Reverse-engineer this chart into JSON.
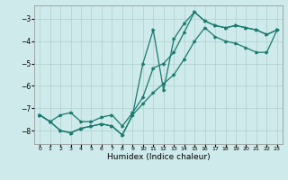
{
  "xlabel": "Humidex (Indice chaleur)",
  "bg_color": "#ceeaea",
  "grid_color": "#b0d0d0",
  "line_color": "#1a7a6e",
  "xlim": [
    -0.5,
    23.5
  ],
  "ylim": [
    -8.6,
    -2.4
  ],
  "yticks": [
    -8,
    -7,
    -6,
    -5,
    -4,
    -3
  ],
  "xticks": [
    0,
    1,
    2,
    3,
    4,
    5,
    6,
    7,
    8,
    9,
    10,
    11,
    12,
    13,
    14,
    15,
    16,
    17,
    18,
    19,
    20,
    21,
    22,
    23
  ],
  "series1_x": [
    0,
    1,
    2,
    3,
    4,
    5,
    6,
    7,
    8,
    9,
    10,
    11,
    12,
    13,
    14,
    15,
    16,
    17,
    18,
    19,
    20,
    21,
    22,
    23
  ],
  "series1_y": [
    -7.3,
    -7.6,
    -8.0,
    -8.1,
    -7.9,
    -7.8,
    -7.7,
    -7.8,
    -8.2,
    -7.3,
    -5.0,
    -3.5,
    -6.2,
    -3.9,
    -3.2,
    -2.7,
    -3.1,
    -3.3,
    -3.4,
    -3.3,
    -3.4,
    -3.5,
    -3.7,
    -3.5
  ],
  "series2_x": [
    0,
    1,
    2,
    3,
    4,
    5,
    6,
    7,
    8,
    9,
    10,
    11,
    12,
    13,
    14,
    15,
    16,
    17,
    18,
    19,
    20,
    21,
    22,
    23
  ],
  "series2_y": [
    -7.3,
    -7.6,
    -7.3,
    -7.2,
    -7.6,
    -7.6,
    -7.4,
    -7.3,
    -7.8,
    -7.2,
    -6.5,
    -5.2,
    -5.0,
    -4.5,
    -3.6,
    -2.7,
    -3.1,
    -3.3,
    -3.4,
    -3.3,
    -3.4,
    -3.5,
    -3.7,
    -3.5
  ],
  "series3_x": [
    0,
    1,
    2,
    3,
    4,
    5,
    6,
    7,
    8,
    9,
    10,
    11,
    12,
    13,
    14,
    15,
    16,
    17,
    18,
    19,
    20,
    21,
    22,
    23
  ],
  "series3_y": [
    -7.3,
    -7.6,
    -8.0,
    -8.1,
    -7.9,
    -7.8,
    -7.7,
    -7.8,
    -8.2,
    -7.3,
    -6.8,
    -6.3,
    -5.9,
    -5.5,
    -4.8,
    -4.0,
    -3.4,
    -3.8,
    -4.0,
    -4.1,
    -4.3,
    -4.5,
    -4.5,
    -3.5
  ]
}
